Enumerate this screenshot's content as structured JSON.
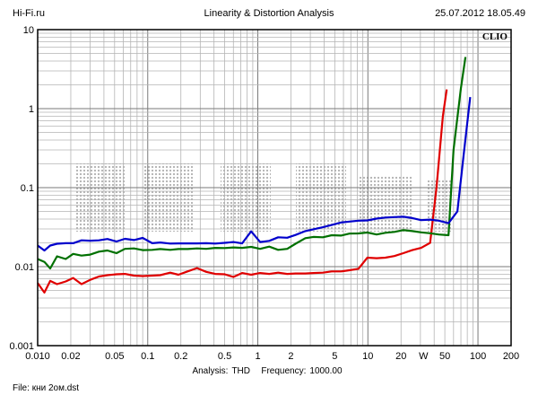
{
  "header": {
    "site": "Hi-Fi.ru",
    "title": "Linearity & Distortion Analysis",
    "datetime": "25.07.2012 18.05.49"
  },
  "footer": {
    "analysis_label": "Analysis:",
    "analysis_value": "THD",
    "frequency_label": "Frequency:",
    "frequency_value": "1000.00",
    "file_label": "File:",
    "file_value": "кни 2ом.dst"
  },
  "chart_data": {
    "type": "line",
    "title": "Linearity & Distortion Analysis",
    "watermark": "CLIO",
    "x_scale": "log",
    "y_scale": "log",
    "xlim": [
      0.01,
      200
    ],
    "ylim": [
      0.001,
      10
    ],
    "x_ticks": [
      {
        "value": 0.01,
        "label": "0.010"
      },
      {
        "value": 0.02,
        "label": "0.02"
      },
      {
        "value": 0.05,
        "label": "0.05"
      },
      {
        "value": 0.1,
        "label": "0.1"
      },
      {
        "value": 0.2,
        "label": "0.2"
      },
      {
        "value": 0.5,
        "label": "0.5"
      },
      {
        "value": 1,
        "label": "1"
      },
      {
        "value": 2,
        "label": "2"
      },
      {
        "value": 5,
        "label": "5"
      },
      {
        "value": 10,
        "label": "10"
      },
      {
        "value": 20,
        "label": "20"
      },
      {
        "value": 32,
        "label": "W"
      },
      {
        "value": 50,
        "label": "50"
      },
      {
        "value": 100,
        "label": "100"
      },
      {
        "value": 200,
        "label": "200"
      }
    ],
    "y_ticks": [
      {
        "value": 10,
        "label": "10"
      },
      {
        "value": 1,
        "label": "1"
      },
      {
        "value": 0.1,
        "label": "0.1"
      },
      {
        "value": 0.01,
        "label": "0.01"
      },
      {
        "value": 0.001,
        "label": "0.001"
      }
    ],
    "grid": true,
    "series": [
      {
        "color": "#e00000",
        "points": [
          [
            0.01,
            0.0062
          ],
          [
            0.0115,
            0.0047
          ],
          [
            0.013,
            0.0066
          ],
          [
            0.015,
            0.006
          ],
          [
            0.018,
            0.0065
          ],
          [
            0.021,
            0.0072
          ],
          [
            0.025,
            0.006
          ],
          [
            0.03,
            0.0068
          ],
          [
            0.036,
            0.0075
          ],
          [
            0.043,
            0.0078
          ],
          [
            0.052,
            0.008
          ],
          [
            0.062,
            0.0081
          ],
          [
            0.075,
            0.0077
          ],
          [
            0.09,
            0.0076
          ],
          [
            0.11,
            0.0077
          ],
          [
            0.13,
            0.0078
          ],
          [
            0.16,
            0.0084
          ],
          [
            0.19,
            0.0079
          ],
          [
            0.23,
            0.0087
          ],
          [
            0.28,
            0.0096
          ],
          [
            0.34,
            0.0086
          ],
          [
            0.41,
            0.0081
          ],
          [
            0.5,
            0.008
          ],
          [
            0.6,
            0.0074
          ],
          [
            0.72,
            0.0083
          ],
          [
            0.87,
            0.0079
          ],
          [
            1.05,
            0.0083
          ],
          [
            1.27,
            0.0081
          ],
          [
            1.53,
            0.0084
          ],
          [
            1.85,
            0.0081
          ],
          [
            2.2,
            0.0082
          ],
          [
            2.7,
            0.0082
          ],
          [
            3.2,
            0.0083
          ],
          [
            3.9,
            0.0084
          ],
          [
            4.7,
            0.0087
          ],
          [
            5.7,
            0.0087
          ],
          [
            6.8,
            0.009
          ],
          [
            8.2,
            0.0094
          ],
          [
            9.9,
            0.013
          ],
          [
            12,
            0.0128
          ],
          [
            14.4,
            0.013
          ],
          [
            17.4,
            0.0136
          ],
          [
            21,
            0.0148
          ],
          [
            25.3,
            0.0162
          ],
          [
            30.5,
            0.0173
          ],
          [
            36.8,
            0.02
          ],
          [
            42,
            0.1
          ],
          [
            48,
            0.8
          ],
          [
            52,
            1.75
          ]
        ]
      },
      {
        "color": "#007000",
        "points": [
          [
            0.01,
            0.0125
          ],
          [
            0.0115,
            0.0115
          ],
          [
            0.013,
            0.0095
          ],
          [
            0.015,
            0.0135
          ],
          [
            0.018,
            0.0125
          ],
          [
            0.021,
            0.0145
          ],
          [
            0.025,
            0.0138
          ],
          [
            0.03,
            0.0142
          ],
          [
            0.036,
            0.0155
          ],
          [
            0.043,
            0.016
          ],
          [
            0.052,
            0.0148
          ],
          [
            0.062,
            0.0168
          ],
          [
            0.075,
            0.017
          ],
          [
            0.09,
            0.0162
          ],
          [
            0.11,
            0.0163
          ],
          [
            0.13,
            0.0167
          ],
          [
            0.16,
            0.0163
          ],
          [
            0.19,
            0.0167
          ],
          [
            0.23,
            0.0167
          ],
          [
            0.28,
            0.017
          ],
          [
            0.34,
            0.0168
          ],
          [
            0.41,
            0.0173
          ],
          [
            0.5,
            0.0172
          ],
          [
            0.6,
            0.0175
          ],
          [
            0.72,
            0.0173
          ],
          [
            0.87,
            0.0178
          ],
          [
            1.05,
            0.0168
          ],
          [
            1.27,
            0.0179
          ],
          [
            1.53,
            0.0163
          ],
          [
            1.85,
            0.0168
          ],
          [
            2.2,
            0.0195
          ],
          [
            2.7,
            0.0229
          ],
          [
            3.2,
            0.0238
          ],
          [
            3.9,
            0.0235
          ],
          [
            4.7,
            0.025
          ],
          [
            5.7,
            0.0247
          ],
          [
            6.8,
            0.0262
          ],
          [
            8.2,
            0.0263
          ],
          [
            9.9,
            0.027
          ],
          [
            12,
            0.0255
          ],
          [
            14.4,
            0.0268
          ],
          [
            17.4,
            0.0275
          ],
          [
            21,
            0.029
          ],
          [
            25.3,
            0.0282
          ],
          [
            30.5,
            0.0272
          ],
          [
            36.8,
            0.0265
          ],
          [
            44,
            0.0255
          ],
          [
            54,
            0.025
          ],
          [
            60,
            0.3
          ],
          [
            70,
            1.8
          ],
          [
            77,
            4.5
          ]
        ]
      },
      {
        "color": "#0000cc",
        "points": [
          [
            0.01,
            0.0185
          ],
          [
            0.0115,
            0.016
          ],
          [
            0.013,
            0.0185
          ],
          [
            0.015,
            0.0195
          ],
          [
            0.018,
            0.0198
          ],
          [
            0.021,
            0.0198
          ],
          [
            0.025,
            0.0215
          ],
          [
            0.03,
            0.0213
          ],
          [
            0.036,
            0.0215
          ],
          [
            0.043,
            0.0224
          ],
          [
            0.052,
            0.0208
          ],
          [
            0.062,
            0.0225
          ],
          [
            0.075,
            0.0217
          ],
          [
            0.09,
            0.0231
          ],
          [
            0.11,
            0.0198
          ],
          [
            0.13,
            0.0202
          ],
          [
            0.16,
            0.0196
          ],
          [
            0.19,
            0.0197
          ],
          [
            0.23,
            0.0197
          ],
          [
            0.28,
            0.0197
          ],
          [
            0.34,
            0.0198
          ],
          [
            0.41,
            0.0196
          ],
          [
            0.5,
            0.02
          ],
          [
            0.6,
            0.0205
          ],
          [
            0.72,
            0.0197
          ],
          [
            0.87,
            0.028
          ],
          [
            1.05,
            0.0205
          ],
          [
            1.27,
            0.0212
          ],
          [
            1.53,
            0.0235
          ],
          [
            1.85,
            0.0232
          ],
          [
            2.2,
            0.0252
          ],
          [
            2.7,
            0.0282
          ],
          [
            3.2,
            0.0297
          ],
          [
            3.9,
            0.0315
          ],
          [
            4.7,
            0.0337
          ],
          [
            5.7,
            0.0362
          ],
          [
            6.8,
            0.0372
          ],
          [
            8.2,
            0.0382
          ],
          [
            9.9,
            0.0385
          ],
          [
            12,
            0.0405
          ],
          [
            14.4,
            0.0418
          ],
          [
            17.4,
            0.0424
          ],
          [
            21,
            0.0428
          ],
          [
            25.3,
            0.0412
          ],
          [
            30.5,
            0.0388
          ],
          [
            36.8,
            0.0394
          ],
          [
            44,
            0.0382
          ],
          [
            54,
            0.0355
          ],
          [
            65,
            0.05
          ],
          [
            75,
            0.3
          ],
          [
            85,
            1.4
          ]
        ]
      }
    ]
  }
}
